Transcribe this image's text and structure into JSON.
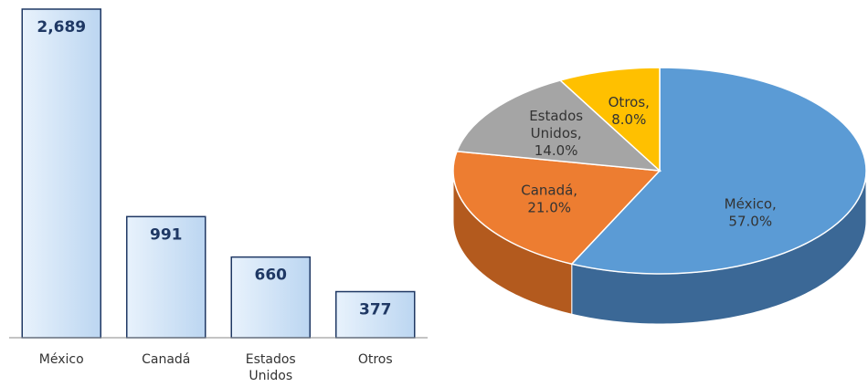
{
  "chart_data": [
    {
      "type": "bar",
      "categories": [
        "México",
        "Canadá",
        "Estados Unidos",
        "Otros"
      ],
      "values": [
        2689,
        991,
        660,
        377
      ],
      "value_labels": [
        "2,689",
        "991",
        "660",
        "377"
      ],
      "color": "#cfe3f8",
      "edge_color": "#1f3864"
    },
    {
      "type": "pie",
      "categories": [
        "México",
        "Canadá",
        "Estados Unidos",
        "Otros"
      ],
      "values": [
        57,
        21,
        14,
        8
      ],
      "value_labels": [
        "México, 57.0%",
        "Canadá, 21.0%",
        "Estados Unidos, 14.0%",
        "Otros, 8.0%"
      ],
      "colors": [
        "#5b9bd5",
        "#ed7d31",
        "#a5a5a5",
        "#ffc000"
      ],
      "side_colors": [
        "#3b6896",
        "#b35a1e",
        "#787878",
        "#c09000"
      ]
    }
  ]
}
